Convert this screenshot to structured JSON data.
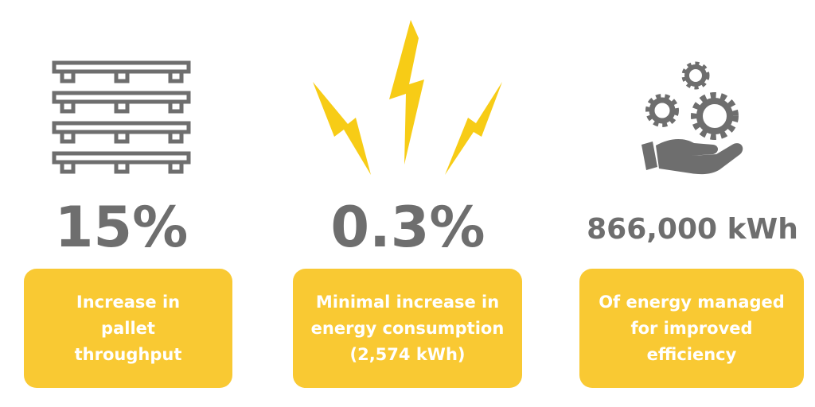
{
  "stats": [
    {
      "value": "15%",
      "description": "Increase in pallet throughput"
    },
    {
      "value": "0.3%",
      "description": "Minimal increase in energy consumption (2,574 kWh)"
    },
    {
      "value": "866,000 kWh",
      "description": "Of energy managed for improved efficiency"
    }
  ]
}
